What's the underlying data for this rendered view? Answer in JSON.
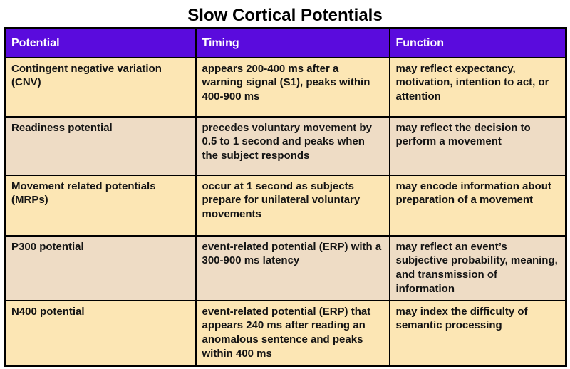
{
  "title": "Slow Cortical Potentials",
  "table": {
    "columns": [
      "Potential",
      "Timing",
      "Function"
    ],
    "rows": [
      {
        "potential": "Contingent negative variation (CNV)",
        "timing": "appears 200-400 ms after a warning signal (S1), peaks within 400-900 ms",
        "function": "may reflect expectancy, motivation, intention to act, or attention"
      },
      {
        "potential": "Readiness potential",
        "timing": "precedes voluntary movement by 0.5 to 1 second and peaks when the subject responds",
        "function": "may reflect the decision to perform a movement"
      },
      {
        "potential": "Movement related potentials (MRPs)",
        "timing": "occur at 1 second as subjects prepare for unilateral voluntary movements",
        "function": "may encode information about preparation of a movement"
      },
      {
        "potential": "P300 potential",
        "timing": "event-related potential (ERP) with a 300-900 ms latency",
        "function": "may reflect an event’s subjective probability, meaning, and transmission of information"
      },
      {
        "potential": "N400 potential",
        "timing": "event-related potential (ERP) that appears 240 ms after reading an anomalous sentence and peaks within 400 ms",
        "function": "may index the difficulty of semantic processing"
      }
    ],
    "colors": {
      "header_bg": "#5a0bdd",
      "header_text": "#ffffff",
      "row_light": "#fce6b4",
      "row_dark": "#eedcc5",
      "border": "#000000",
      "text": "#141414"
    }
  }
}
